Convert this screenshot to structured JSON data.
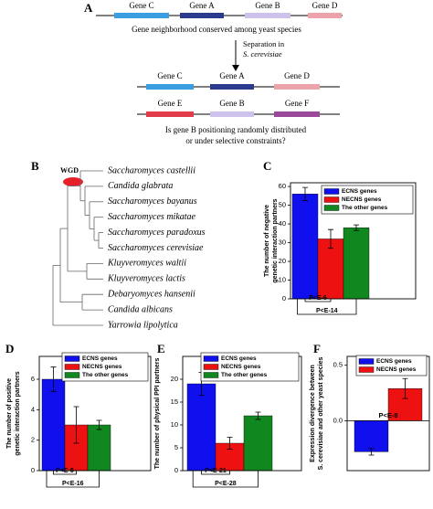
{
  "panel_a": {
    "label": "A",
    "row1": {
      "genes": [
        "Gene C",
        "Gene A",
        "Gene B",
        "Gene D"
      ],
      "colors": [
        "#3a9ee0",
        "#2b3a8c",
        "#cdc3ea",
        "#eda3aa"
      ]
    },
    "caption": "Gene neighborhood conserved among yeast species",
    "arrow_label": [
      "Separation in",
      "S. cerevisiae"
    ],
    "row2": {
      "genes": [
        "Gene C",
        "Gene A",
        "Gene D"
      ],
      "colors": [
        "#3a9ee0",
        "#2b3a8c",
        "#eda3aa"
      ]
    },
    "row3": {
      "genes": [
        "Gene E",
        "Gene B",
        "Gene F"
      ],
      "colors": [
        "#e23b4a",
        "#cdc3ea",
        "#9b4a9b"
      ]
    },
    "question": [
      "Is gene B positioning randomly distributed",
      "or under selective constraints?"
    ]
  },
  "panel_b": {
    "label": "B",
    "wgd_label": "WGD",
    "species": [
      "Saccharomyces castellii",
      "Candida glabrata",
      "Saccharomyces bayanus",
      "Saccharomyces mikatae",
      "Saccharomyces paradoxus",
      "Saccharomyces cerevisiae",
      "Kluyveromyces waltii",
      "Kluyveromyces lactis",
      "Debaryomyces hansenii",
      "Candida albicans",
      "Yarrowia lipolytica"
    ]
  },
  "chart_data": [
    {
      "type": "bar",
      "panel": "C",
      "ylabel": [
        "The number of negative",
        "genetic interaction partners"
      ],
      "ylim": [
        0,
        62
      ],
      "yticks": [
        0,
        10,
        20,
        30,
        40,
        50,
        60
      ],
      "legend": "upper right",
      "series": [
        {
          "name": "ECNS genes",
          "color": "#1010ee",
          "values": [
            56
          ],
          "errors": [
            3.5
          ]
        },
        {
          "name": "NECNS genes",
          "color": "#ee1111",
          "values": [
            32
          ],
          "errors": [
            5
          ]
        },
        {
          "name": "The other genes",
          "color": "#11881f",
          "values": [
            38
          ],
          "errors": [
            1.5
          ]
        }
      ],
      "annotations": [
        "P<E-6",
        "P<E-14"
      ]
    },
    {
      "type": "bar",
      "panel": "D",
      "ylabel": [
        "The number of positive",
        "genetic interaction partners"
      ],
      "ylim": [
        0,
        7.5
      ],
      "yticks": [
        0,
        2,
        4,
        6
      ],
      "legend": "upper right",
      "series": [
        {
          "name": "ECNS genes",
          "color": "#1010ee",
          "values": [
            6
          ],
          "errors": [
            0.8
          ]
        },
        {
          "name": "NECNS genes",
          "color": "#ee1111",
          "values": [
            3
          ],
          "errors": [
            1.2
          ]
        },
        {
          "name": "The other genes",
          "color": "#11881f",
          "values": [
            3
          ],
          "errors": [
            0.3
          ]
        }
      ],
      "annotations": [
        "P<E-5",
        "P<E-16"
      ]
    },
    {
      "type": "bar",
      "panel": "E",
      "ylabel": [
        "The number of physical PPI partners"
      ],
      "ylim": [
        0,
        25
      ],
      "yticks": [
        0,
        5,
        10,
        15,
        20
      ],
      "legend": "upper right",
      "series": [
        {
          "name": "ECNS genes",
          "color": "#1010ee",
          "values": [
            19
          ],
          "errors": [
            2.5
          ]
        },
        {
          "name": "NECNS genes",
          "color": "#ee1111",
          "values": [
            6
          ],
          "errors": [
            1.3
          ]
        },
        {
          "name": "The other genes",
          "color": "#11881f",
          "values": [
            12
          ],
          "errors": [
            0.8
          ]
        }
      ],
      "annotations": [
        "P<E-21",
        "P<E-28"
      ]
    },
    {
      "type": "bar",
      "panel": "F",
      "ylabel": [
        "Expression divergence between",
        "S. cerevisiae and other yeast species"
      ],
      "ylim": [
        -0.45,
        0.58
      ],
      "yticks": [
        {
          "value": 0,
          "label": "0.0"
        },
        0.5
      ],
      "legend": "upper right",
      "series": [
        {
          "name": "ECNS genes",
          "color": "#1010ee",
          "values": [
            -0.28
          ],
          "errors": [
            0.03
          ]
        },
        {
          "name": "NECNS genes",
          "color": "#ee1111",
          "values": [
            0.29
          ],
          "errors": [
            0.09
          ]
        }
      ],
      "annotations": [
        "P<E-8"
      ]
    }
  ]
}
